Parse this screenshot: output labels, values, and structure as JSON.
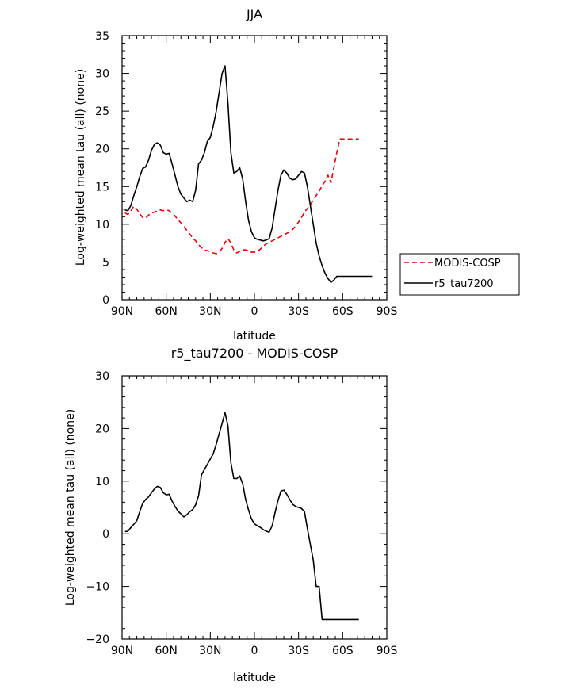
{
  "chart_data": [
    {
      "type": "line",
      "title": "JJA",
      "xlabel": "latitude",
      "ylabel": "Log-weighted mean tau (all) (none)",
      "xlim": [
        90,
        -90
      ],
      "ylim": [
        0,
        35
      ],
      "xticks": [
        90,
        60,
        30,
        0,
        -30,
        -60,
        -90
      ],
      "xtick_labels": [
        "90N",
        "60N",
        "30N",
        "0",
        "30S",
        "60S",
        "90S"
      ],
      "yticks": [
        0,
        5,
        10,
        15,
        20,
        25,
        30,
        35
      ],
      "ytick_labels": [
        "0",
        "5",
        "10",
        "15",
        "20",
        "25",
        "30",
        "35"
      ],
      "legend": [
        "MODIS-COSP",
        "r5_tau7200"
      ],
      "series": [
        {
          "name": "MODIS-COSP",
          "color": "#e8000b",
          "dash": "dashed",
          "x": [
            88,
            86,
            84,
            82,
            80,
            78,
            76,
            74,
            72,
            70,
            68,
            66,
            64,
            62,
            60,
            58,
            56,
            54,
            52,
            50,
            48,
            46,
            44,
            42,
            40,
            38,
            36,
            34,
            32,
            30,
            28,
            26,
            24,
            22,
            20,
            18,
            16,
            14,
            12,
            10,
            8,
            6,
            4,
            2,
            0,
            -2,
            -4,
            -6,
            -8,
            -10,
            -12,
            -14,
            -16,
            -18,
            -20,
            -22,
            -24,
            -26,
            -28,
            -30,
            -32,
            -34,
            -36,
            -38,
            -40,
            -42,
            -44,
            -46,
            -48,
            -50,
            -52,
            -54,
            -56,
            -58,
            -60,
            -62,
            -64,
            -66,
            -67,
            -68,
            -69,
            -70,
            -71
          ],
          "y": [
            11.5,
            11.3,
            11.8,
            12.4,
            12.0,
            11.4,
            10.9,
            10.8,
            11.2,
            11.5,
            11.6,
            11.8,
            11.9,
            11.8,
            11.9,
            11.8,
            11.5,
            11.1,
            10.6,
            10.2,
            9.8,
            9.2,
            8.7,
            8.2,
            7.8,
            7.3,
            6.9,
            6.6,
            6.5,
            6.4,
            6.2,
            6.1,
            6.3,
            6.8,
            7.6,
            8.1,
            7.5,
            6.6,
            6.2,
            6.4,
            6.6,
            6.6,
            6.5,
            6.3,
            6.3,
            6.4,
            6.7,
            7.1,
            7.4,
            7.6,
            7.8,
            8.0,
            8.2,
            8.4,
            8.6,
            8.8,
            9.0,
            9.3,
            9.8,
            10.3,
            10.9,
            11.6,
            12.1,
            12.6,
            13.2,
            13.8,
            14.4,
            15.1,
            15.7,
            16.5,
            15.5,
            17.5,
            19.5,
            21.3,
            21.3,
            21.3,
            21.3,
            21.3,
            21.3,
            21.3,
            21.3,
            21.3,
            21.3
          ]
        },
        {
          "name": "r5_tau7200",
          "color": "#000000",
          "dash": "solid",
          "x": [
            88,
            86,
            84,
            82,
            80,
            78,
            76,
            74,
            72,
            70,
            68,
            66,
            64,
            62,
            60,
            58,
            56,
            54,
            52,
            50,
            48,
            46,
            44,
            42,
            40,
            38,
            36,
            34,
            32,
            30,
            28,
            26,
            24,
            22,
            20,
            18,
            16,
            14,
            12,
            10,
            8,
            6,
            4,
            2,
            0,
            -2,
            -4,
            -6,
            -8,
            -10,
            -12,
            -14,
            -16,
            -18,
            -20,
            -22,
            -24,
            -26,
            -28,
            -30,
            -32,
            -34,
            -36,
            -38,
            -40,
            -42,
            -44,
            -46,
            -48,
            -50,
            -52,
            -54,
            -56,
            -58,
            -60,
            -62,
            -64,
            -66,
            -68,
            -70,
            -72,
            -74,
            -76,
            -78,
            -80
          ],
          "y": [
            11.9,
            11.8,
            12.5,
            13.8,
            15.0,
            16.3,
            17.4,
            17.6,
            18.5,
            19.8,
            20.6,
            20.8,
            20.5,
            19.5,
            19.3,
            19.4,
            18.0,
            16.5,
            15.0,
            14.0,
            13.5,
            13.0,
            13.2,
            13.0,
            14.5,
            18.0,
            18.5,
            19.5,
            21.0,
            21.5,
            23.0,
            25.0,
            27.5,
            30.0,
            31.0,
            26.0,
            19.5,
            16.8,
            17.0,
            17.5,
            16.0,
            13.0,
            10.5,
            9.0,
            8.2,
            8.0,
            7.9,
            7.8,
            7.9,
            8.1,
            9.5,
            12.0,
            14.5,
            16.5,
            17.2,
            16.8,
            16.1,
            15.9,
            16.0,
            16.5,
            17.0,
            16.8,
            15.0,
            12.5,
            10.0,
            7.5,
            5.8,
            4.5,
            3.5,
            2.8,
            2.3,
            2.6,
            3.1,
            3.1,
            3.1,
            3.1,
            3.1,
            3.1,
            3.1,
            3.1,
            3.1,
            3.1,
            3.1,
            3.1,
            3.1
          ]
        }
      ]
    },
    {
      "type": "line",
      "title": "r5_tau7200 - MODIS-COSP",
      "xlabel": "latitude",
      "ylabel": "Log-weighted mean tau (all) (none)",
      "xlim": [
        90,
        -90
      ],
      "ylim": [
        -20,
        30
      ],
      "xticks": [
        90,
        60,
        30,
        0,
        -30,
        -60,
        -90
      ],
      "xtick_labels": [
        "90N",
        "60N",
        "30N",
        "0",
        "30S",
        "60S",
        "90S"
      ],
      "yticks": [
        -20,
        -10,
        0,
        10,
        20,
        30
      ],
      "ytick_labels": [
        "−20",
        "−10",
        "0",
        "10",
        "20",
        "30"
      ],
      "series": [
        {
          "name": "r5_tau7200 - MODIS-COSP",
          "color": "#000000",
          "dash": "solid",
          "x": [
            88,
            86,
            84,
            82,
            80,
            78,
            76,
            74,
            72,
            70,
            68,
            66,
            64,
            62,
            60,
            58,
            56,
            54,
            52,
            50,
            48,
            46,
            44,
            42,
            40,
            38,
            36,
            34,
            32,
            30,
            28,
            26,
            24,
            22,
            20,
            18,
            16,
            14,
            12,
            10,
            8,
            6,
            4,
            2,
            0,
            -2,
            -4,
            -6,
            -8,
            -10,
            -12,
            -14,
            -16,
            -18,
            -20,
            -22,
            -24,
            -26,
            -28,
            -30,
            -32,
            -34,
            -36,
            -38,
            -40,
            -42,
            -44,
            -46,
            -48,
            -50,
            -52,
            -54,
            -56,
            -58,
            -60,
            -62,
            -64,
            -66,
            -67,
            -68,
            -69,
            -70,
            -71
          ],
          "y": [
            0.4,
            0.5,
            1.2,
            1.8,
            2.5,
            4.2,
            5.8,
            6.5,
            7.0,
            7.8,
            8.5,
            9.0,
            8.8,
            7.8,
            7.4,
            7.5,
            6.2,
            5.2,
            4.3,
            3.8,
            3.2,
            3.6,
            4.2,
            4.6,
            5.5,
            7.2,
            11.2,
            12.2,
            13.2,
            14.2,
            15.2,
            17.0,
            19.0,
            21.0,
            23.0,
            20.5,
            13.5,
            10.5,
            10.5,
            11.0,
            9.5,
            6.5,
            4.5,
            2.8,
            1.9,
            1.5,
            1.2,
            0.8,
            0.5,
            0.3,
            1.5,
            4.0,
            6.3,
            8.1,
            8.3,
            7.5,
            6.5,
            5.6,
            5.2,
            5.0,
            4.8,
            4.2,
            1.0,
            -2.0,
            -5.0,
            -10.0,
            -10.0,
            -16.3,
            -16.3,
            -16.3,
            -16.3,
            -16.3,
            -16.3,
            -16.3,
            -16.3,
            -16.3,
            -16.3,
            -16.3,
            -16.3,
            -16.3,
            -16.3,
            -16.3,
            -16.3
          ]
        }
      ]
    }
  ]
}
